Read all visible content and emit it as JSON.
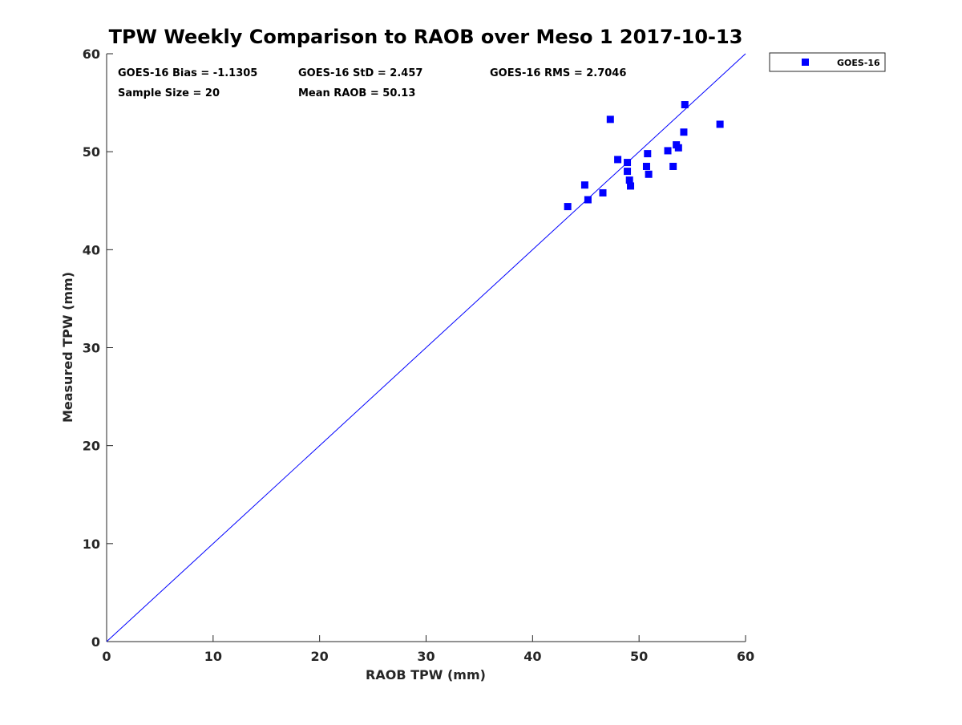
{
  "chart_data": {
    "type": "scatter",
    "title": "TPW Weekly Comparison to RAOB over Meso 1 2017-10-13",
    "xlabel": "RAOB TPW (mm)",
    "ylabel": "Measured TPW (mm)",
    "xlim": [
      0,
      60
    ],
    "ylim": [
      0,
      60
    ],
    "xticks": [
      0,
      10,
      20,
      30,
      40,
      50,
      60
    ],
    "yticks": [
      0,
      10,
      20,
      30,
      40,
      50,
      60
    ],
    "grid": false,
    "legend_position": "outside-top-right",
    "series": [
      {
        "name": "GOES-16",
        "color": "#0000ff",
        "marker": "square",
        "points": [
          {
            "x": 43.3,
            "y": 44.4
          },
          {
            "x": 44.9,
            "y": 46.6
          },
          {
            "x": 45.2,
            "y": 45.1
          },
          {
            "x": 46.6,
            "y": 45.8
          },
          {
            "x": 47.3,
            "y": 53.3
          },
          {
            "x": 48.0,
            "y": 49.2
          },
          {
            "x": 48.9,
            "y": 48.9
          },
          {
            "x": 48.9,
            "y": 48.0
          },
          {
            "x": 49.1,
            "y": 47.1
          },
          {
            "x": 49.2,
            "y": 46.5
          },
          {
            "x": 50.7,
            "y": 48.5
          },
          {
            "x": 50.8,
            "y": 49.8
          },
          {
            "x": 50.9,
            "y": 47.7
          },
          {
            "x": 52.7,
            "y": 50.1
          },
          {
            "x": 53.2,
            "y": 48.5
          },
          {
            "x": 53.5,
            "y": 50.7
          },
          {
            "x": 53.7,
            "y": 50.4
          },
          {
            "x": 54.2,
            "y": 52.0
          },
          {
            "x": 54.3,
            "y": 54.8
          },
          {
            "x": 57.6,
            "y": 52.8
          }
        ]
      }
    ],
    "reference_line": {
      "name": "1:1 line",
      "from": [
        0,
        0
      ],
      "to": [
        60,
        60
      ],
      "color": "#0000ff"
    }
  },
  "stats": {
    "bias": "GOES-16 Bias = -1.1305",
    "std": "GOES-16 StD = 2.457",
    "rms": "GOES-16 RMS = 2.7046",
    "sample_size": "Sample Size = 20",
    "mean_raob": "Mean RAOB = 50.13"
  },
  "legend": {
    "label": "GOES-16"
  }
}
